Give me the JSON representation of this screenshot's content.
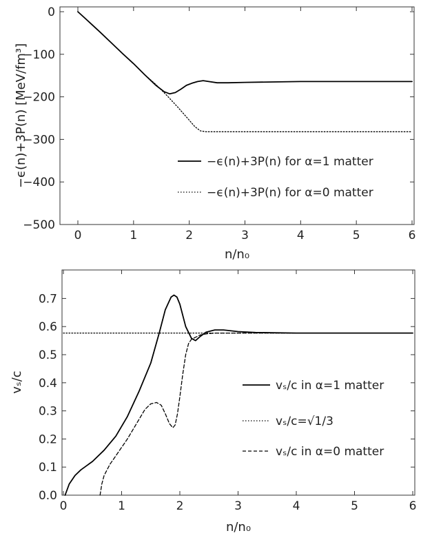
{
  "chart_data": [
    {
      "type": "line",
      "xlabel": "n/n₀",
      "ylabel": "−ϵ(n)+3P(n) [MeV/fm³]",
      "xlim": [
        0,
        6
      ],
      "ylim": [
        -500,
        0
      ],
      "xticks": [
        0,
        1,
        2,
        3,
        4,
        5,
        6
      ],
      "yticks": [
        0,
        -100,
        -200,
        -300,
        -400,
        -500
      ],
      "xtick_labels": [
        "0",
        "1",
        "2",
        "3",
        "4",
        "5",
        "6"
      ],
      "ytick_labels": [
        "0",
        "−100",
        "−200",
        "−300",
        "−400",
        "−500"
      ],
      "legend_position": "lower-right",
      "series": [
        {
          "name": "−ϵ(n)+3P(n) for α=1 matter",
          "style": "solid",
          "x": [
            0,
            0.2,
            0.4,
            0.6,
            0.8,
            1.0,
            1.2,
            1.4,
            1.55,
            1.65,
            1.75,
            1.85,
            1.95,
            2.05,
            2.15,
            2.25,
            2.35,
            2.5,
            2.7,
            3.0,
            3.5,
            4.0,
            5.0,
            6.0
          ],
          "y": [
            0,
            -24,
            -48,
            -73,
            -98,
            -122,
            -148,
            -173,
            -188,
            -193,
            -190,
            -182,
            -173,
            -168,
            -164,
            -162,
            -164,
            -167,
            -167,
            -166,
            -165,
            -164,
            -164,
            -164
          ]
        },
        {
          "name": "−ϵ(n)+3P(n) for α=0 matter",
          "style": "dotted",
          "x": [
            0,
            0.2,
            0.4,
            0.6,
            0.8,
            1.0,
            1.2,
            1.4,
            1.6,
            1.8,
            2.0,
            2.1,
            2.2,
            2.3,
            2.5,
            3.0,
            4.0,
            5.0,
            6.0
          ],
          "y": [
            0,
            -24,
            -48,
            -73,
            -98,
            -122,
            -148,
            -171,
            -197,
            -225,
            -255,
            -270,
            -280,
            -282,
            -282,
            -282,
            -282,
            -282,
            -282
          ]
        }
      ]
    },
    {
      "type": "line",
      "xlabel": "n/n₀",
      "ylabel": "vₛ/c",
      "xlim": [
        0,
        6
      ],
      "ylim": [
        0,
        0.75
      ],
      "xticks": [
        0,
        1,
        2,
        3,
        4,
        5,
        6
      ],
      "yticks": [
        0,
        0.1,
        0.2,
        0.3,
        0.4,
        0.5,
        0.6,
        0.7
      ],
      "xtick_labels": [
        "0",
        "1",
        "2",
        "3",
        "4",
        "5",
        "6"
      ],
      "ytick_labels": [
        "0.0",
        "0.1",
        "0.2",
        "0.3",
        "0.4",
        "0.5",
        "0.6",
        "0.7"
      ],
      "legend_position": "lower-right",
      "series": [
        {
          "name": "vₛ/c in α=1 matter",
          "style": "solid",
          "x": [
            0.03,
            0.1,
            0.2,
            0.3,
            0.5,
            0.7,
            0.9,
            1.1,
            1.3,
            1.5,
            1.65,
            1.75,
            1.85,
            1.9,
            1.95,
            2.0,
            2.1,
            2.2,
            2.27,
            2.35,
            2.45,
            2.6,
            2.75,
            3.0,
            3.3,
            3.6,
            4.0,
            5.0,
            6.0
          ],
          "y": [
            0.0,
            0.04,
            0.07,
            0.09,
            0.12,
            0.16,
            0.21,
            0.28,
            0.37,
            0.47,
            0.58,
            0.66,
            0.705,
            0.712,
            0.705,
            0.68,
            0.6,
            0.558,
            0.55,
            0.565,
            0.58,
            0.588,
            0.588,
            0.582,
            0.579,
            0.578,
            0.577,
            0.577,
            0.577
          ]
        },
        {
          "name": "vₛ/c=√1/3",
          "style": "dotted",
          "x": [
            0,
            6
          ],
          "y": [
            0.577,
            0.577
          ]
        },
        {
          "name": "vₛ/c in α=0 matter",
          "style": "dashed",
          "x": [
            0.63,
            0.66,
            0.7,
            0.8,
            0.9,
            1.0,
            1.1,
            1.2,
            1.3,
            1.4,
            1.5,
            1.6,
            1.68,
            1.75,
            1.82,
            1.88,
            1.92,
            1.96,
            2.0,
            2.05,
            2.1,
            2.15,
            2.2,
            2.27,
            2.35,
            2.45,
            2.6,
            3.0,
            4.0,
            6.0
          ],
          "y": [
            0.0,
            0.04,
            0.07,
            0.11,
            0.14,
            0.17,
            0.2,
            0.235,
            0.27,
            0.305,
            0.325,
            0.33,
            0.32,
            0.29,
            0.255,
            0.24,
            0.25,
            0.29,
            0.35,
            0.43,
            0.5,
            0.54,
            0.555,
            0.562,
            0.57,
            0.574,
            0.577,
            0.577,
            0.577,
            0.577
          ]
        }
      ]
    }
  ]
}
